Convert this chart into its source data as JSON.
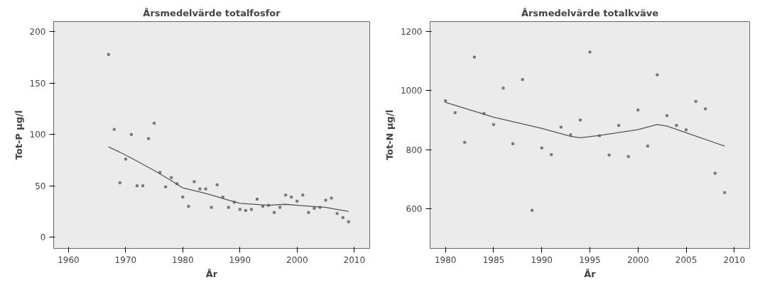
{
  "chart_data": [
    {
      "type": "scatter",
      "title": "Årsmedelvärde totalfosfor",
      "xlabel": "År",
      "ylabel": "Tot-P µg/l",
      "xlim": [
        1957.4,
        2012.7
      ],
      "ylim": [
        -11,
        210
      ],
      "xticks": [
        1960,
        1970,
        1980,
        1990,
        2000,
        2010
      ],
      "yticks": [
        0,
        50,
        100,
        150,
        200
      ],
      "grid": false,
      "x": [
        1967,
        1968,
        1969,
        1970,
        1971,
        1972,
        1973,
        1974,
        1975,
        1976,
        1977,
        1978,
        1979,
        1980,
        1981,
        1982,
        1983,
        1984,
        1985,
        1986,
        1987,
        1988,
        1989,
        1990,
        1991,
        1992,
        1993,
        1994,
        1995,
        1996,
        1997,
        1998,
        1999,
        2000,
        2001,
        2002,
        2003,
        2004,
        2005,
        2006,
        2007,
        2008,
        2009
      ],
      "series": [
        {
          "marker": "square",
          "color": "#777777",
          "values": [
            178,
            105,
            53,
            76,
            100,
            50,
            50,
            96,
            111,
            63,
            49,
            58,
            52,
            39,
            30,
            54,
            47,
            47,
            29,
            51,
            39,
            29,
            34,
            27,
            26,
            27,
            37,
            30,
            31,
            24,
            29,
            41,
            39,
            35,
            41,
            24,
            28,
            29,
            36,
            38,
            23,
            19,
            15
          ]
        },
        {
          "type": "line",
          "color": "#555555",
          "x": [
            1967,
            1970,
            1975,
            1978,
            1980,
            1983,
            1985,
            1988,
            1990,
            1995,
            1998,
            2000,
            2005,
            2009
          ],
          "values": [
            88,
            80,
            65,
            55,
            48,
            44,
            41,
            36,
            33,
            31,
            32,
            31,
            29,
            25
          ]
        }
      ]
    },
    {
      "type": "scatter",
      "title": "Årsmedelvärde totalkväve",
      "xlabel": "År",
      "ylabel": "Tot-N µg/l",
      "xlim": [
        1978.4,
        2011.6
      ],
      "ylim": [
        466,
        1233
      ],
      "xticks": [
        1980,
        1985,
        1990,
        1995,
        2000,
        2005,
        2010
      ],
      "yticks": [
        600,
        800,
        1000,
        1200
      ],
      "grid": false,
      "x": [
        1980,
        1981,
        1982,
        1983,
        1984,
        1985,
        1986,
        1987,
        1988,
        1989,
        1990,
        1991,
        1992,
        1993,
        1994,
        1995,
        1996,
        1997,
        1998,
        1999,
        2000,
        2001,
        2002,
        2003,
        2004,
        2005,
        2006,
        2007,
        2008,
        2009
      ],
      "series": [
        {
          "marker": "square",
          "color": "#777777",
          "values": [
            965,
            925,
            825,
            1113,
            922,
            885,
            1008,
            820,
            1037,
            595,
            806,
            783,
            876,
            850,
            900,
            1130,
            847,
            782,
            882,
            777,
            934,
            812,
            1053,
            915,
            882,
            867,
            963,
            938,
            720,
            655
          ]
        },
        {
          "type": "line",
          "color": "#555555",
          "x": [
            1980,
            1985,
            1990,
            1993,
            1994,
            1996,
            2000,
            2002,
            2003,
            2009
          ],
          "values": [
            960,
            910,
            872,
            845,
            840,
            848,
            868,
            885,
            880,
            812
          ]
        }
      ]
    }
  ]
}
